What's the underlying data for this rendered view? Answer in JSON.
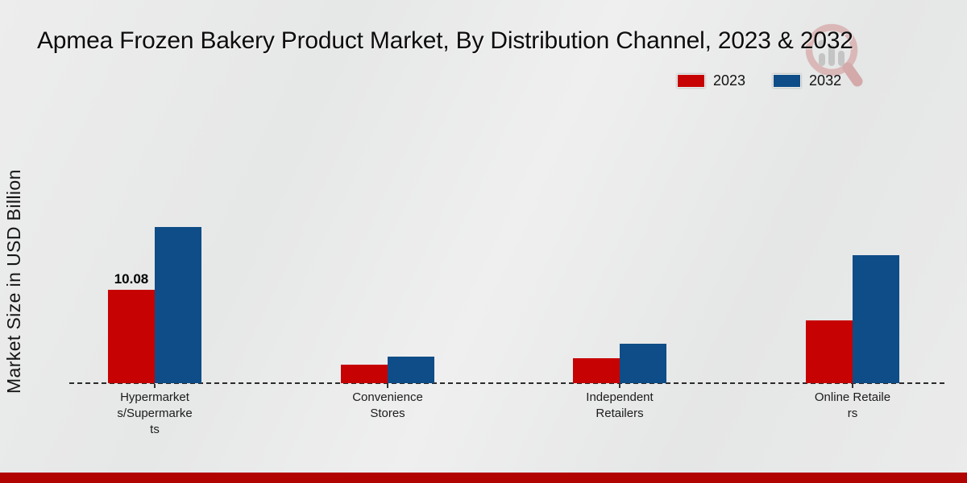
{
  "chart_data": {
    "type": "bar",
    "title": "Apmea Frozen Bakery Product Market, By Distribution Channel, 2023 & 2032",
    "ylabel": "Market Size in USD Billion",
    "xlabel": "",
    "categories": [
      "Hypermarkets/Supermarkets",
      "Convenience Stores",
      "Independent Retailers",
      "Online Retailers"
    ],
    "series": [
      {
        "name": "2023",
        "color": "#c70202",
        "values": [
          10.08,
          2.0,
          2.7,
          6.8
        ]
      },
      {
        "name": "2032",
        "color": "#0e4d87",
        "values": [
          16.85,
          2.9,
          4.25,
          13.8
        ]
      }
    ],
    "annotations": [
      {
        "series_index": 0,
        "category_index": 0,
        "text": "10.08"
      }
    ],
    "ylim": [
      0,
      18.5
    ],
    "grid": false,
    "legend_position": "top-right",
    "baseline_style": "dashed"
  },
  "watermark": {
    "icon": "magnifier-bar-chart-logo"
  },
  "colors": {
    "footer_accent": "#b20303",
    "background": "#e9e9e9"
  }
}
